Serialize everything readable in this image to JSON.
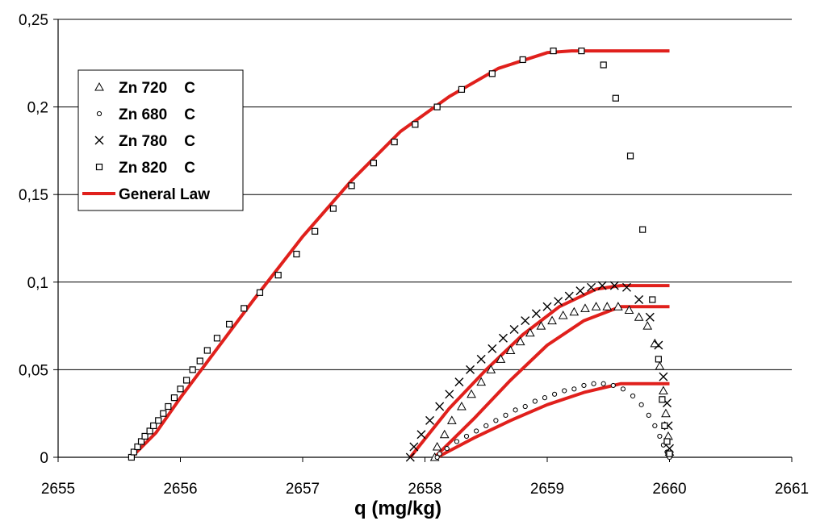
{
  "chart_data": {
    "type": "scatter",
    "title": "",
    "xlabel": "q (mg/kg)",
    "ylabel": "",
    "xlim": [
      2655,
      2661
    ],
    "ylim": [
      0,
      0.25
    ],
    "x_ticks": [
      "2655",
      "2656",
      "2657",
      "2658",
      "2659",
      "2660",
      "2661"
    ],
    "y_ticks": [
      "0",
      "0,05",
      "0,1",
      "0,15",
      "0,2",
      "0,25"
    ],
    "grid": "horizontal",
    "legend": "upper-left",
    "series": [
      {
        "name": "Zn 720    C",
        "marker": "triangle",
        "points": [
          [
            2658.08,
            0.0
          ],
          [
            2658.1,
            0.006
          ],
          [
            2658.16,
            0.013
          ],
          [
            2658.22,
            0.021
          ],
          [
            2658.3,
            0.029
          ],
          [
            2658.38,
            0.036
          ],
          [
            2658.46,
            0.043
          ],
          [
            2658.54,
            0.05
          ],
          [
            2658.62,
            0.056
          ],
          [
            2658.7,
            0.061
          ],
          [
            2658.78,
            0.066
          ],
          [
            2658.86,
            0.071
          ],
          [
            2658.95,
            0.075
          ],
          [
            2659.04,
            0.078
          ],
          [
            2659.13,
            0.081
          ],
          [
            2659.22,
            0.083
          ],
          [
            2659.31,
            0.085
          ],
          [
            2659.4,
            0.086
          ],
          [
            2659.49,
            0.086
          ],
          [
            2659.58,
            0.086
          ],
          [
            2659.67,
            0.084
          ],
          [
            2659.75,
            0.08
          ],
          [
            2659.82,
            0.075
          ],
          [
            2659.88,
            0.065
          ],
          [
            2659.92,
            0.052
          ],
          [
            2659.95,
            0.038
          ],
          [
            2659.97,
            0.025
          ],
          [
            2659.99,
            0.012
          ],
          [
            2660.0,
            0.003
          ]
        ]
      },
      {
        "name": "Zn 680    C",
        "marker": "circle",
        "points": [
          [
            2658.1,
            0.0
          ],
          [
            2658.12,
            0.002
          ],
          [
            2658.18,
            0.005
          ],
          [
            2658.26,
            0.009
          ],
          [
            2658.34,
            0.012
          ],
          [
            2658.42,
            0.015
          ],
          [
            2658.5,
            0.018
          ],
          [
            2658.58,
            0.021
          ],
          [
            2658.66,
            0.024
          ],
          [
            2658.74,
            0.027
          ],
          [
            2658.82,
            0.029
          ],
          [
            2658.9,
            0.032
          ],
          [
            2658.98,
            0.034
          ],
          [
            2659.06,
            0.036
          ],
          [
            2659.14,
            0.038
          ],
          [
            2659.22,
            0.039
          ],
          [
            2659.3,
            0.041
          ],
          [
            2659.38,
            0.042
          ],
          [
            2659.46,
            0.042
          ],
          [
            2659.54,
            0.041
          ],
          [
            2659.62,
            0.039
          ],
          [
            2659.7,
            0.035
          ],
          [
            2659.77,
            0.03
          ],
          [
            2659.83,
            0.024
          ],
          [
            2659.88,
            0.018
          ],
          [
            2659.92,
            0.012
          ],
          [
            2659.95,
            0.007
          ],
          [
            2659.98,
            0.003
          ],
          [
            2660.0,
            0.0
          ]
        ]
      },
      {
        "name": "Zn 780    C",
        "marker": "x",
        "points": [
          [
            2657.88,
            0.0
          ],
          [
            2657.91,
            0.006
          ],
          [
            2657.97,
            0.013
          ],
          [
            2658.04,
            0.021
          ],
          [
            2658.12,
            0.029
          ],
          [
            2658.2,
            0.036
          ],
          [
            2658.28,
            0.043
          ],
          [
            2658.37,
            0.05
          ],
          [
            2658.46,
            0.056
          ],
          [
            2658.55,
            0.062
          ],
          [
            2658.64,
            0.068
          ],
          [
            2658.73,
            0.073
          ],
          [
            2658.82,
            0.078
          ],
          [
            2658.91,
            0.082
          ],
          [
            2659.0,
            0.086
          ],
          [
            2659.09,
            0.089
          ],
          [
            2659.18,
            0.092
          ],
          [
            2659.27,
            0.095
          ],
          [
            2659.36,
            0.097
          ],
          [
            2659.45,
            0.098
          ],
          [
            2659.55,
            0.098
          ],
          [
            2659.65,
            0.097
          ],
          [
            2659.75,
            0.09
          ],
          [
            2659.84,
            0.08
          ],
          [
            2659.91,
            0.064
          ],
          [
            2659.95,
            0.046
          ],
          [
            2659.98,
            0.031
          ],
          [
            2659.99,
            0.018
          ],
          [
            2660.0,
            0.005
          ]
        ]
      },
      {
        "name": "Zn 820    C",
        "marker": "square",
        "points": [
          [
            2655.6,
            0.0
          ],
          [
            2655.62,
            0.003
          ],
          [
            2655.65,
            0.006
          ],
          [
            2655.68,
            0.009
          ],
          [
            2655.71,
            0.012
          ],
          [
            2655.75,
            0.015
          ],
          [
            2655.78,
            0.018
          ],
          [
            2655.82,
            0.021
          ],
          [
            2655.86,
            0.025
          ],
          [
            2655.9,
            0.029
          ],
          [
            2655.95,
            0.034
          ],
          [
            2656.0,
            0.039
          ],
          [
            2656.05,
            0.044
          ],
          [
            2656.1,
            0.05
          ],
          [
            2656.16,
            0.055
          ],
          [
            2656.22,
            0.061
          ],
          [
            2656.3,
            0.068
          ],
          [
            2656.4,
            0.076
          ],
          [
            2656.52,
            0.085
          ],
          [
            2656.65,
            0.094
          ],
          [
            2656.8,
            0.104
          ],
          [
            2656.95,
            0.116
          ],
          [
            2657.1,
            0.129
          ],
          [
            2657.25,
            0.142
          ],
          [
            2657.4,
            0.155
          ],
          [
            2657.58,
            0.168
          ],
          [
            2657.75,
            0.18
          ],
          [
            2657.92,
            0.19
          ],
          [
            2658.1,
            0.2
          ],
          [
            2658.3,
            0.21
          ],
          [
            2658.55,
            0.219
          ],
          [
            2658.8,
            0.227
          ],
          [
            2659.05,
            0.232
          ],
          [
            2659.28,
            0.232
          ],
          [
            2659.46,
            0.224
          ],
          [
            2659.56,
            0.205
          ],
          [
            2659.68,
            0.172
          ],
          [
            2659.78,
            0.13
          ],
          [
            2659.86,
            0.09
          ],
          [
            2659.91,
            0.056
          ],
          [
            2659.94,
            0.033
          ],
          [
            2659.96,
            0.018
          ],
          [
            2659.98,
            0.009
          ],
          [
            2660.0,
            0.002
          ]
        ]
      },
      {
        "name": "General Law",
        "marker": "line",
        "color": "#e0201c",
        "lines": [
          [
            [
              2655.6,
              0.0
            ],
            [
              2655.8,
              0.014
            ],
            [
              2656.0,
              0.034
            ],
            [
              2656.3,
              0.062
            ],
            [
              2656.6,
              0.09
            ],
            [
              2657.0,
              0.126
            ],
            [
              2657.4,
              0.158
            ],
            [
              2657.8,
              0.186
            ],
            [
              2658.2,
              0.206
            ],
            [
              2658.6,
              0.222
            ],
            [
              2659.0,
              0.231
            ],
            [
              2659.2,
              0.232
            ],
            [
              2660.0,
              0.232
            ]
          ],
          [
            [
              2657.88,
              0.0
            ],
            [
              2658.2,
              0.028
            ],
            [
              2658.5,
              0.05
            ],
            [
              2658.8,
              0.07
            ],
            [
              2659.1,
              0.086
            ],
            [
              2659.4,
              0.096
            ],
            [
              2659.6,
              0.098
            ],
            [
              2660.0,
              0.098
            ]
          ],
          [
            [
              2658.08,
              0.0
            ],
            [
              2658.4,
              0.022
            ],
            [
              2658.7,
              0.044
            ],
            [
              2659.0,
              0.064
            ],
            [
              2659.3,
              0.078
            ],
            [
              2659.6,
              0.086
            ],
            [
              2660.0,
              0.086
            ]
          ],
          [
            [
              2658.1,
              0.0
            ],
            [
              2658.4,
              0.011
            ],
            [
              2658.7,
              0.021
            ],
            [
              2659.0,
              0.03
            ],
            [
              2659.3,
              0.037
            ],
            [
              2659.6,
              0.042
            ],
            [
              2660.0,
              0.042
            ]
          ]
        ]
      }
    ]
  }
}
